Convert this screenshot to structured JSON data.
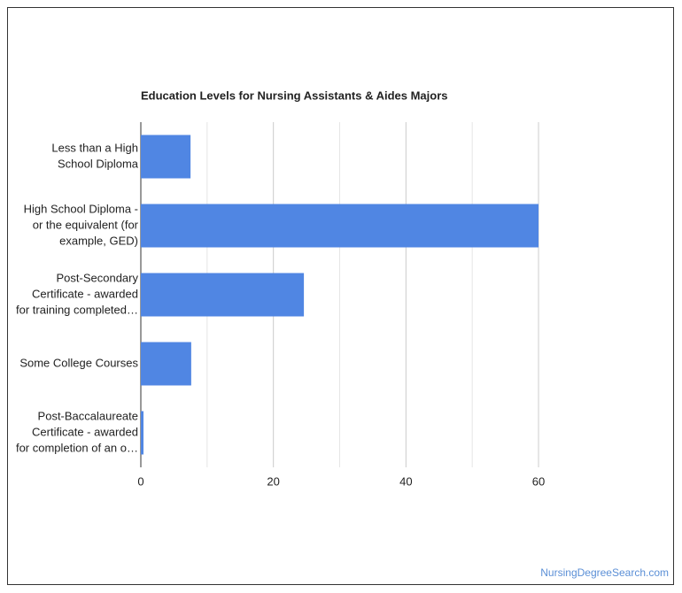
{
  "chart_data": {
    "type": "bar",
    "orientation": "horizontal",
    "title": "Education Levels for Nursing Assistants & Aides Majors",
    "categories": [
      [
        "Less than a High",
        "School Diploma"
      ],
      [
        "High School Diploma -",
        "or the equivalent (for",
        "example, GED)"
      ],
      [
        "Post-Secondary",
        "Certificate - awarded",
        "for training completed…"
      ],
      [
        "Some College Courses"
      ],
      [
        "Post-Baccalaureate",
        "Certificate - awarded",
        "for completion of an o…"
      ]
    ],
    "values": [
      7.5,
      60,
      24.6,
      7.6,
      0.4
    ],
    "color": "#5086e3",
    "xlim": [
      0,
      60
    ],
    "xticks": [
      0,
      20,
      40,
      60
    ],
    "x_minor_ticks": [
      10,
      30,
      50
    ],
    "grid": true,
    "source": "NursingDegreeSearch.com"
  }
}
